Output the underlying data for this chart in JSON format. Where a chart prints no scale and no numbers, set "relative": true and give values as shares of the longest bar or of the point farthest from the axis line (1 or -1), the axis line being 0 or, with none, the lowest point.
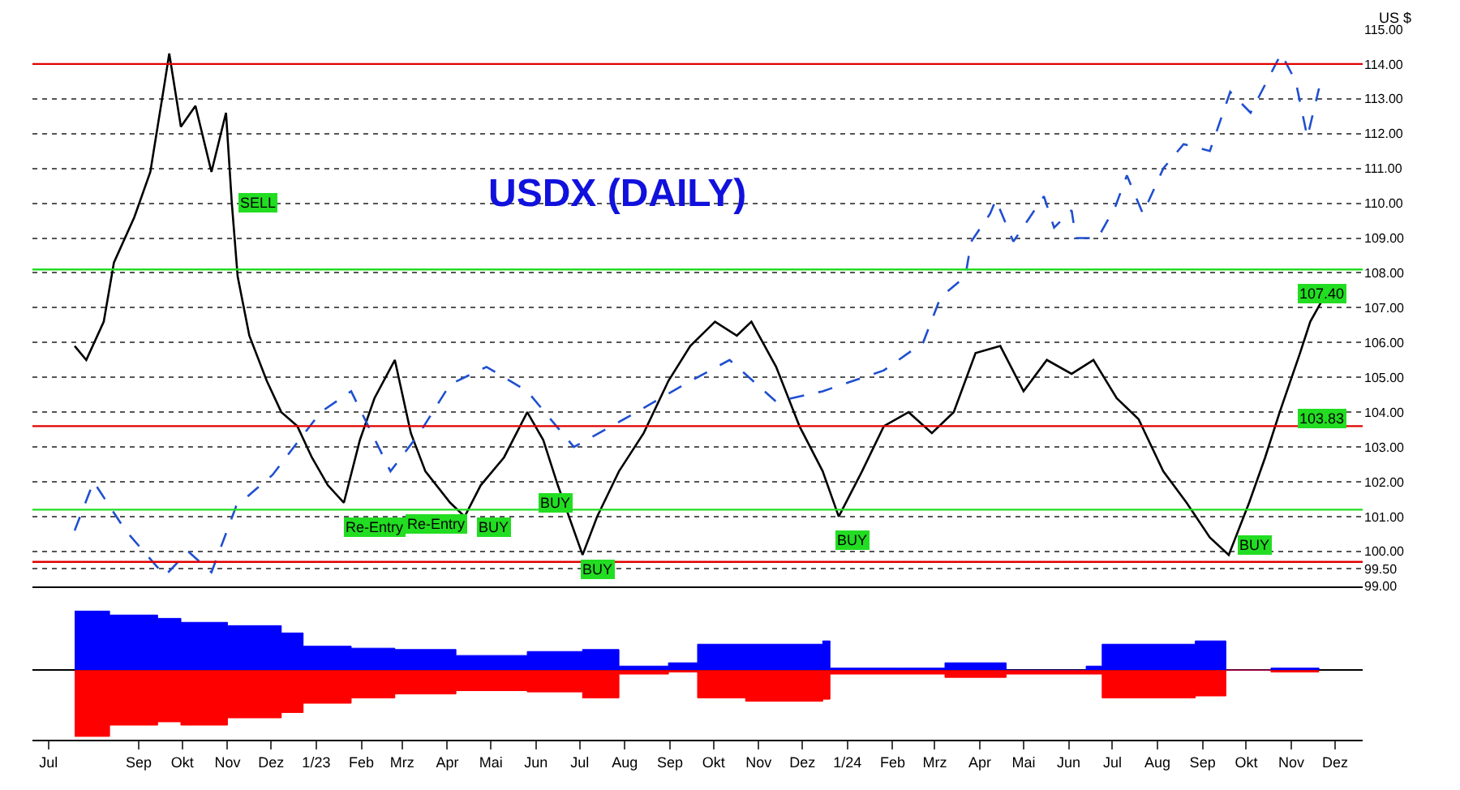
{
  "chart_data": [
    {
      "type": "line",
      "title": "USDX (DAILY)",
      "ylabel": "US $",
      "x": [
        "2022-07-19",
        "2022-07-27",
        "2022-08-08",
        "2022-08-15",
        "2022-08-29",
        "2022-09-09",
        "2022-09-19",
        "2022-09-22",
        "2022-09-30",
        "2022-10-10",
        "2022-10-21",
        "2022-10-31",
        "2022-11-04",
        "2022-11-08",
        "2022-11-16",
        "2022-11-28",
        "2022-12-08",
        "2022-12-19",
        "2022-12-29",
        "2023-01-09",
        "2023-01-20",
        "2023-01-31",
        "2023-02-10",
        "2023-02-24",
        "2023-03-07",
        "2023-03-17",
        "2023-04-03",
        "2023-04-13",
        "2023-04-24",
        "2023-05-10",
        "2023-05-26",
        "2023-06-06",
        "2023-06-16",
        "2023-07-03",
        "2023-07-13",
        "2023-07-28",
        "2023-08-14",
        "2023-08-31",
        "2023-09-15",
        "2023-10-02",
        "2023-10-17",
        "2023-10-27",
        "2023-11-13",
        "2023-11-29",
        "2023-12-15",
        "2023-12-26",
        "2024-01-11",
        "2024-01-26",
        "2024-02-12",
        "2024-02-28",
        "2024-03-14",
        "2024-03-29",
        "2024-04-15",
        "2024-05-01",
        "2024-05-17",
        "2024-06-03",
        "2024-06-18",
        "2024-07-04",
        "2024-07-19",
        "2024-08-05",
        "2024-08-21",
        "2024-09-06",
        "2024-09-19",
        "2024-10-03",
        "2024-10-14",
        "2024-10-24",
        "2024-11-07",
        "2024-11-14",
        "2024-11-22"
      ],
      "series": [
        {
          "color": "#000000",
          "values": [
            105.9,
            105.5,
            106.6,
            108.3,
            109.6,
            110.9,
            113.5,
            114.3,
            112.2,
            112.8,
            110.9,
            112.6,
            110.0,
            107.9,
            106.2,
            104.9,
            104.0,
            103.6,
            102.7,
            101.9,
            101.4,
            103.2,
            104.4,
            105.5,
            103.4,
            102.3,
            101.4,
            101.0,
            101.9,
            102.7,
            104.0,
            103.2,
            101.9,
            99.9,
            101.0,
            102.3,
            103.4,
            104.9,
            105.9,
            106.6,
            106.2,
            106.6,
            105.3,
            103.6,
            102.3,
            101.0,
            102.3,
            103.6,
            104.0,
            103.4,
            104.0,
            105.7,
            105.9,
            104.6,
            105.5,
            105.1,
            105.5,
            104.4,
            103.8,
            102.3,
            101.4,
            100.4,
            99.9,
            101.4,
            102.7,
            104.0,
            105.7,
            106.6,
            107.2
          ]
        },
        {
          "color": "#1f4fd0",
          "line_style": "dashed",
          "x": [
            "2022-07-19",
            "2022-08-01",
            "2022-08-23",
            "2022-09-19",
            "2022-10-05",
            "2022-10-21",
            "2022-11-07",
            "2022-12-02",
            "2023-01-04",
            "2023-01-25",
            "2023-02-21",
            "2023-03-13",
            "2023-04-03",
            "2023-04-28",
            "2023-05-26",
            "2023-06-27",
            "2023-08-09",
            "2023-09-11",
            "2023-10-12",
            "2023-11-13",
            "2023-12-15",
            "2024-01-26",
            "2024-02-22",
            "2024-03-05",
            "2024-03-22",
            "2024-03-26",
            "2024-04-08",
            "2024-04-12",
            "2024-04-24",
            "2024-05-15",
            "2024-05-22",
            "2024-06-03",
            "2024-06-06",
            "2024-06-21",
            "2024-07-03",
            "2024-07-11",
            "2024-07-22",
            "2024-08-05",
            "2024-08-19",
            "2024-09-06",
            "2024-09-20",
            "2024-10-04",
            "2024-10-25",
            "2024-11-04",
            "2024-11-12",
            "2024-11-20"
          ],
          "values": [
            100.6,
            102.0,
            100.6,
            99.3,
            100.0,
            99.4,
            101.3,
            102.2,
            104.0,
            104.6,
            102.3,
            103.4,
            104.8,
            105.3,
            104.6,
            103.0,
            104.0,
            104.8,
            105.5,
            104.3,
            104.6,
            105.2,
            106.0,
            107.3,
            107.9,
            108.9,
            109.7,
            110.1,
            108.9,
            110.2,
            109.3,
            109.8,
            109.0,
            109.0,
            109.9,
            110.8,
            109.7,
            111.0,
            111.7,
            111.5,
            113.2,
            112.6,
            114.3,
            113.5,
            111.9,
            113.3
          ]
        }
      ],
      "xlim": [
        "2022-06-20",
        "2024-12-20"
      ],
      "ylim": [
        99,
        115
      ],
      "yticks": [
        {
          "value": 99,
          "label": "99.00"
        },
        {
          "value": 99.5,
          "label": "99.50"
        },
        {
          "value": 100,
          "label": "100.00"
        },
        {
          "value": 101,
          "label": "101.00"
        },
        {
          "value": 102,
          "label": "102.00"
        },
        {
          "value": 103,
          "label": "103.00"
        },
        {
          "value": 104,
          "label": "104.00"
        },
        {
          "value": 105,
          "label": "105.00"
        },
        {
          "value": 106,
          "label": "106.00"
        },
        {
          "value": 107,
          "label": "107.00"
        },
        {
          "value": 108,
          "label": "108.00"
        },
        {
          "value": 109,
          "label": "109.00"
        },
        {
          "value": 110,
          "label": "110.00"
        },
        {
          "value": 111,
          "label": "111.00"
        },
        {
          "value": 112,
          "label": "112.00"
        },
        {
          "value": 113,
          "label": "113.00"
        },
        {
          "value": 114,
          "label": "114.00"
        },
        {
          "value": 115,
          "label": "115.00"
        }
      ],
      "ref_lines": [
        {
          "axis": "y",
          "value": 114.0,
          "color": "#e00000"
        },
        {
          "axis": "y",
          "value": 108.1,
          "color": "#22dd22"
        },
        {
          "axis": "y",
          "value": 103.6,
          "color": "#e00000"
        },
        {
          "axis": "y",
          "value": 101.2,
          "color": "#22dd22"
        },
        {
          "axis": "y",
          "value": 99.7,
          "color": "#e00000"
        }
      ],
      "annotations": [
        {
          "text": "SELL",
          "x": "2022-11-22",
          "y": 110.0
        },
        {
          "text": "Re-Entry",
          "x": "2023-02-10",
          "y": 100.7
        },
        {
          "text": "Re-Entry",
          "x": "2023-03-24",
          "y": 100.8
        },
        {
          "text": "BUY",
          "x": "2023-05-03",
          "y": 100.7
        },
        {
          "text": "BUY",
          "x": "2023-06-14",
          "y": 101.4
        },
        {
          "text": "BUY",
          "x": "2023-07-13",
          "y": 99.5
        },
        {
          "text": "BUY",
          "x": "2024-01-04",
          "y": 100.3
        },
        {
          "text": "BUY",
          "x": "2024-10-07",
          "y": 100.2
        },
        {
          "text": "107.40",
          "x": "2024-11-22",
          "y": 107.4
        },
        {
          "text": "103.83",
          "x": "2024-11-22",
          "y": 103.83
        }
      ],
      "grid": "y",
      "tick_labels": "y"
    },
    {
      "type": "area",
      "relative": true,
      "x": [
        "2022-07-19",
        "2022-08-12",
        "2022-09-14",
        "2022-09-30",
        "2022-11-01",
        "2022-12-08",
        "2022-12-23",
        "2023-01-25",
        "2023-02-24",
        "2023-04-07",
        "2023-05-26",
        "2023-07-03",
        "2023-07-28",
        "2023-08-31",
        "2023-09-20",
        "2023-10-23",
        "2023-12-15",
        "2023-12-20",
        "2024-02-07",
        "2024-03-08",
        "2024-04-19",
        "2024-06-13",
        "2024-06-24",
        "2024-08-27",
        "2024-09-12",
        "2024-09-17",
        "2024-10-18",
        "2024-11-20"
      ],
      "series": [
        {
          "color": "#0000ff",
          "values": [
            0.89,
            0.83,
            0.78,
            0.72,
            0.67,
            0.56,
            0.36,
            0.33,
            0.31,
            0.22,
            0.28,
            0.31,
            0.06,
            0.11,
            0.39,
            0.39,
            0.44,
            0.03,
            0.03,
            0.11,
            0,
            0.06,
            0.39,
            0.44,
            0.44,
            0,
            0.03,
            0
          ]
        },
        {
          "color": "#ff0000",
          "values": [
            -1,
            -0.83,
            -0.78,
            -0.83,
            -0.72,
            -0.64,
            -0.5,
            -0.42,
            -0.36,
            -0.31,
            -0.33,
            -0.42,
            -0.06,
            -0.03,
            -0.42,
            -0.47,
            -0.44,
            -0.06,
            -0.06,
            -0.11,
            -0.06,
            -0.06,
            -0.42,
            -0.39,
            -0.39,
            0,
            -0.03,
            -0.03
          ]
        }
      ],
      "xlim": [
        "2022-06-20",
        "2024-12-20"
      ],
      "xticks": [
        {
          "value": "2022-07-01",
          "label": "Jul"
        },
        {
          "value": "2022-09-01",
          "label": "Sep"
        },
        {
          "value": "2022-10-01",
          "label": "Okt"
        },
        {
          "value": "2022-11-01",
          "label": "Nov"
        },
        {
          "value": "2022-12-01",
          "label": "Dez"
        },
        {
          "value": "2023-01-01",
          "label": "1/23"
        },
        {
          "value": "2023-02-01",
          "label": "Feb"
        },
        {
          "value": "2023-03-01",
          "label": "Mrz"
        },
        {
          "value": "2023-04-01",
          "label": "Apr"
        },
        {
          "value": "2023-05-01",
          "label": "Mai"
        },
        {
          "value": "2023-06-01",
          "label": "Jun"
        },
        {
          "value": "2023-07-01",
          "label": "Jul"
        },
        {
          "value": "2023-08-01",
          "label": "Aug"
        },
        {
          "value": "2023-09-01",
          "label": "Sep"
        },
        {
          "value": "2023-10-01",
          "label": "Okt"
        },
        {
          "value": "2023-11-01",
          "label": "Nov"
        },
        {
          "value": "2023-12-01",
          "label": "Dez"
        },
        {
          "value": "2024-01-01",
          "label": "1/24"
        },
        {
          "value": "2024-02-01",
          "label": "Feb"
        },
        {
          "value": "2024-03-01",
          "label": "Mrz"
        },
        {
          "value": "2024-04-01",
          "label": "Apr"
        },
        {
          "value": "2024-05-01",
          "label": "Mai"
        },
        {
          "value": "2024-06-01",
          "label": "Jun"
        },
        {
          "value": "2024-07-01",
          "label": "Jul"
        },
        {
          "value": "2024-08-01",
          "label": "Aug"
        },
        {
          "value": "2024-09-01",
          "label": "Sep"
        },
        {
          "value": "2024-10-01",
          "label": "Okt"
        },
        {
          "value": "2024-11-01",
          "label": "Nov"
        },
        {
          "value": "2024-12-01",
          "label": "Dez"
        }
      ],
      "tick_labels": "x"
    }
  ]
}
